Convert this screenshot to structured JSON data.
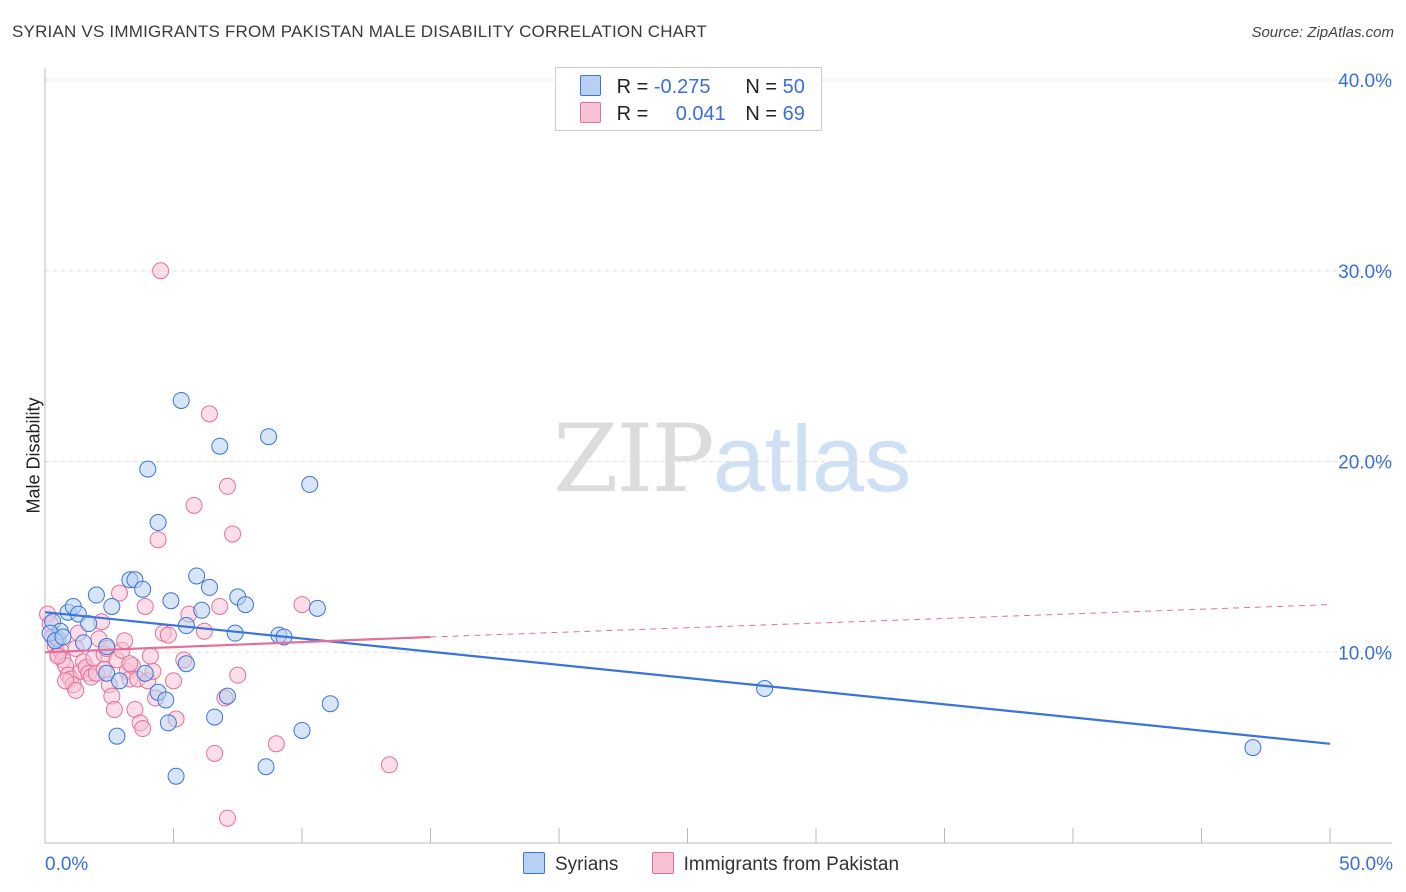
{
  "title": "SYRIAN VS IMMIGRANTS FROM PAKISTAN MALE DISABILITY CORRELATION CHART",
  "source": "Source: ZipAtlas.com",
  "watermark": {
    "zip": "ZIP",
    "atlas": "atlas"
  },
  "colors": {
    "blue": "#3a74d8",
    "blue_fill": "#b8d0f2",
    "pink": "#e4709a",
    "pink_fill": "#f7c3d4",
    "grid": "#dddddd",
    "axis_label": "#3a6fd8"
  },
  "legend_top": {
    "rows": [
      {
        "r_label": "R =",
        "r_value": "-0.275",
        "n_label": "N =",
        "n_value": "50"
      },
      {
        "r_label": "R =",
        "r_value": "0.041",
        "n_label": "N =",
        "n_value": "69"
      }
    ]
  },
  "legend_bottom": [
    "Syrians",
    "Immigrants from Pakistan"
  ],
  "chart_data": {
    "type": "scatter",
    "ylabel": "Male Disability",
    "xlim": [
      0,
      50
    ],
    "ylim": [
      0,
      40
    ],
    "x_tick_labels": [
      {
        "value": 0,
        "label": "0.0%"
      },
      {
        "value": 50,
        "label": "50.0%"
      }
    ],
    "y_tick_labels": [
      {
        "value": 10,
        "label": "10.0%"
      },
      {
        "value": 20,
        "label": "20.0%"
      },
      {
        "value": 30,
        "label": "30.0%"
      },
      {
        "value": 40,
        "label": "40.0%"
      }
    ],
    "series": [
      {
        "name": "Syrians",
        "points": [
          [
            0.3,
            11.6
          ],
          [
            0.5,
            10.7
          ],
          [
            0.6,
            11.1
          ],
          [
            0.9,
            12.1
          ],
          [
            1.1,
            12.4
          ],
          [
            1.3,
            12.0
          ],
          [
            1.5,
            10.5
          ],
          [
            1.7,
            11.5
          ],
          [
            2.0,
            13.0
          ],
          [
            2.6,
            12.4
          ],
          [
            2.4,
            10.3
          ],
          [
            2.4,
            8.9
          ],
          [
            2.9,
            8.5
          ],
          [
            2.8,
            5.6
          ],
          [
            3.3,
            13.8
          ],
          [
            3.5,
            13.8
          ],
          [
            3.8,
            13.3
          ],
          [
            3.9,
            8.9
          ],
          [
            4.0,
            19.6
          ],
          [
            4.4,
            16.8
          ],
          [
            4.4,
            7.9
          ],
          [
            4.7,
            7.5
          ],
          [
            4.8,
            6.3
          ],
          [
            4.9,
            12.7
          ],
          [
            5.1,
            3.5
          ],
          [
            5.3,
            23.2
          ],
          [
            5.5,
            9.4
          ],
          [
            5.5,
            11.4
          ],
          [
            5.9,
            14.0
          ],
          [
            6.1,
            12.2
          ],
          [
            6.4,
            13.4
          ],
          [
            6.6,
            6.6
          ],
          [
            6.8,
            20.8
          ],
          [
            7.1,
            7.7
          ],
          [
            7.4,
            11.0
          ],
          [
            7.5,
            12.9
          ],
          [
            7.8,
            12.5
          ],
          [
            8.6,
            4.0
          ],
          [
            8.7,
            21.3
          ],
          [
            9.1,
            10.9
          ],
          [
            9.3,
            10.8
          ],
          [
            10.0,
            5.9
          ],
          [
            10.3,
            18.8
          ],
          [
            10.6,
            12.3
          ],
          [
            11.1,
            7.3
          ],
          [
            28.0,
            8.1
          ],
          [
            47.0,
            5.0
          ],
          [
            0.2,
            11.0
          ],
          [
            0.4,
            10.6
          ],
          [
            0.7,
            10.8
          ]
        ]
      },
      {
        "name": "Immigrants from Pakistan",
        "points": [
          [
            0.1,
            12.0
          ],
          [
            0.2,
            11.5
          ],
          [
            0.3,
            10.8
          ],
          [
            0.4,
            10.3
          ],
          [
            0.5,
            9.9
          ],
          [
            0.6,
            10.1
          ],
          [
            0.7,
            9.6
          ],
          [
            0.8,
            9.3
          ],
          [
            0.9,
            8.8
          ],
          [
            1.0,
            8.6
          ],
          [
            1.1,
            8.3
          ],
          [
            1.2,
            10.2
          ],
          [
            1.3,
            11.0
          ],
          [
            1.4,
            9.0
          ],
          [
            1.5,
            9.5
          ],
          [
            1.6,
            9.2
          ],
          [
            1.7,
            8.9
          ],
          [
            1.8,
            8.7
          ],
          [
            1.9,
            9.7
          ],
          [
            2.0,
            8.9
          ],
          [
            2.1,
            10.7
          ],
          [
            2.2,
            11.6
          ],
          [
            2.3,
            9.9
          ],
          [
            2.4,
            10.2
          ],
          [
            2.5,
            8.3
          ],
          [
            2.6,
            7.7
          ],
          [
            2.7,
            7.0
          ],
          [
            2.8,
            9.6
          ],
          [
            2.9,
            13.1
          ],
          [
            3.0,
            10.1
          ],
          [
            3.1,
            10.6
          ],
          [
            3.2,
            9.0
          ],
          [
            3.3,
            8.6
          ],
          [
            3.4,
            9.3
          ],
          [
            3.5,
            7.0
          ],
          [
            3.6,
            8.6
          ],
          [
            3.7,
            6.3
          ],
          [
            3.8,
            6.0
          ],
          [
            3.9,
            12.4
          ],
          [
            4.0,
            8.5
          ],
          [
            4.2,
            9.0
          ],
          [
            4.3,
            7.6
          ],
          [
            4.4,
            15.9
          ],
          [
            4.5,
            30.0
          ],
          [
            4.6,
            11.0
          ],
          [
            4.8,
            10.9
          ],
          [
            5.0,
            8.5
          ],
          [
            5.1,
            6.5
          ],
          [
            5.4,
            9.6
          ],
          [
            5.6,
            12.0
          ],
          [
            5.8,
            17.7
          ],
          [
            6.2,
            11.1
          ],
          [
            6.4,
            22.5
          ],
          [
            6.6,
            4.7
          ],
          [
            6.8,
            12.4
          ],
          [
            7.0,
            7.6
          ],
          [
            7.1,
            18.7
          ],
          [
            7.3,
            16.2
          ],
          [
            7.5,
            8.8
          ],
          [
            9.0,
            5.2
          ],
          [
            10.0,
            12.5
          ],
          [
            13.4,
            4.1
          ],
          [
            0.8,
            8.5
          ],
          [
            7.1,
            1.3
          ],
          [
            0.5,
            9.8
          ],
          [
            1.2,
            8.0
          ],
          [
            2.3,
            9.1
          ],
          [
            3.3,
            9.4
          ],
          [
            4.1,
            9.8
          ]
        ]
      }
    ],
    "trend_lines": [
      {
        "series": "Syrians",
        "x0": 0,
        "y0": 12.1,
        "x1": 50,
        "y1": 5.2,
        "style": "solid"
      },
      {
        "series": "Immigrants from Pakistan",
        "x0": 0,
        "y0": 10.0,
        "x1": 15,
        "y1": 10.8,
        "style": "solid"
      },
      {
        "series": "Immigrants from Pakistan",
        "x0": 15,
        "y0": 10.8,
        "x1": 50,
        "y1": 12.5,
        "style": "dashed"
      }
    ]
  }
}
